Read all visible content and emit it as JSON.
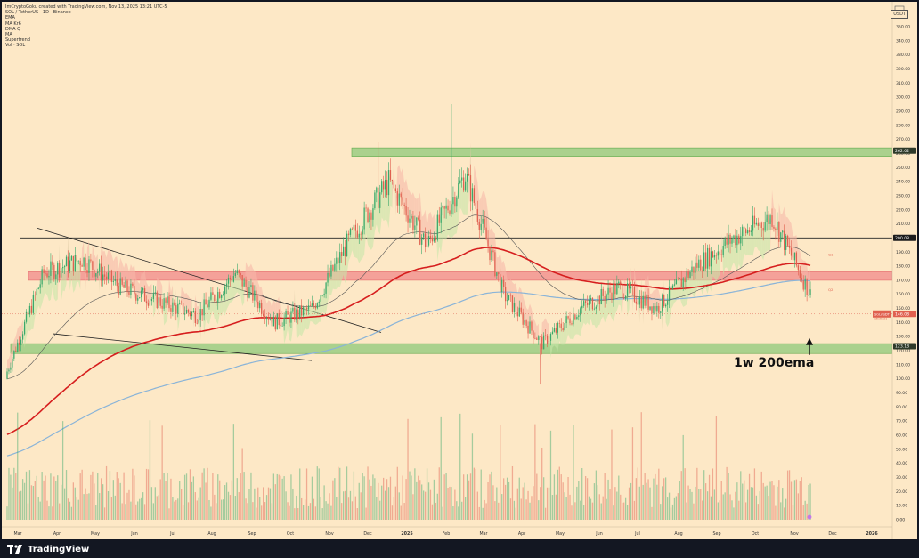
{
  "header": {
    "author_line": "ImCryptoGoku created with TradingView.com, Nov 13, 2025 13:21 UTC-5",
    "symbol_line": "SOL / TetherUS · 1D · Binance",
    "indicators": [
      "EMA",
      "MA Kr6",
      "DMA Q",
      "MA",
      "Supertrend",
      "Vol · SOL"
    ]
  },
  "axis": {
    "currency": "USDT",
    "y_ticks": [
      "350.00",
      "340.00",
      "330.00",
      "320.00",
      "310.00",
      "300.00",
      "290.00",
      "280.00",
      "270.00",
      "260.00",
      "250.00",
      "240.00",
      "230.00",
      "220.00",
      "210.00",
      "200.00",
      "190.00",
      "180.00",
      "170.00",
      "160.00",
      "150.00",
      "140.00",
      "130.00",
      "120.00",
      "110.00",
      "100.00",
      "90.00",
      "80.00",
      "70.00",
      "60.00",
      "50.00",
      "40.00",
      "30.00",
      "20.00",
      "10.00",
      "0.00"
    ],
    "x_ticks": [
      "Mar",
      "Apr",
      "May",
      "Jun",
      "Jul",
      "Aug",
      "Sep",
      "Oct",
      "Nov",
      "Dec",
      "2025",
      "Feb",
      "Mar",
      "Apr",
      "May",
      "Jun",
      "Jul",
      "Aug",
      "Sep",
      "Oct",
      "Nov",
      "Dec",
      "2026"
    ]
  },
  "badges": {
    "resistance": "262.02",
    "mid": "200.08",
    "price": "146.08",
    "price_symbol": "SOLUSDT",
    "price_sub": "15:38:21",
    "support": "123.18",
    "red_label_1": "Q1",
    "red_label_2": "Q2"
  },
  "annotation": "1w 200ema",
  "footer": {
    "brand": "TradingView"
  },
  "colors": {
    "background": "#fde8c6",
    "up": "#3aa86b",
    "down": "#e0604f",
    "ema": "#d61e1e",
    "sma_long": "#8ab4d8",
    "green_zone": "#8ec97a",
    "red_zone": "#f08a8a",
    "supertrend_fill_up": "#c7e6a8",
    "supertrend_fill_down": "#f6b8a8"
  },
  "chart_data": {
    "type": "candlestick",
    "symbol": "SOL / TetherUS",
    "interval": "1D",
    "exchange": "Binance",
    "ylim": [
      0,
      350
    ],
    "zones": [
      {
        "name": "resistance",
        "low": 258,
        "high": 264
      },
      {
        "name": "supply",
        "low": 170,
        "high": 176
      },
      {
        "name": "support",
        "low": 118,
        "high": 125
      }
    ],
    "horizontal_lines": [
      200.08
    ],
    "monthly_close_approx": [
      {
        "x": "Mar",
        "close": 175
      },
      {
        "x": "Apr",
        "close": 185
      },
      {
        "x": "May",
        "close": 165
      },
      {
        "x": "Jun",
        "close": 155
      },
      {
        "x": "Jul",
        "close": 145
      },
      {
        "x": "Aug",
        "close": 175
      },
      {
        "x": "Sep",
        "close": 140
      },
      {
        "x": "Oct",
        "close": 150
      },
      {
        "x": "Nov",
        "close": 200
      },
      {
        "x": "Dec",
        "close": 240
      },
      {
        "x": "2025",
        "close": 195
      },
      {
        "x": "Feb",
        "close": 245
      },
      {
        "x": "Mar",
        "close": 160
      },
      {
        "x": "Apr",
        "close": 125
      },
      {
        "x": "May",
        "close": 150
      },
      {
        "x": "Jun",
        "close": 165
      },
      {
        "x": "Jul",
        "close": 150
      },
      {
        "x": "Aug",
        "close": 180
      },
      {
        "x": "Sep",
        "close": 200
      },
      {
        "x": "Oct",
        "close": 215
      },
      {
        "x": "Nov",
        "close": 160
      }
    ]
  }
}
